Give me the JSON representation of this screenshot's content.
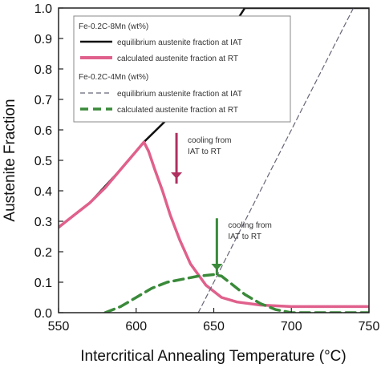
{
  "chart_data": {
    "type": "line",
    "xlabel": "Intercritical Annealing Temperature (°C)",
    "ylabel": "Austenite Fraction",
    "xlim": [
      550,
      750
    ],
    "ylim": [
      0,
      1.0
    ],
    "xticks": [
      "550",
      "600",
      "650",
      "700",
      "750"
    ],
    "yticks": [
      "0.0",
      "0.1",
      "0.2",
      "0.3",
      "0.4",
      "0.5",
      "0.6",
      "0.7",
      "0.8",
      "0.9",
      "1.0"
    ],
    "grid": false,
    "legend": {
      "placement": "top-left",
      "group1_title": "Fe-0.2C-8Mn (wt%)",
      "group2_title": "Fe-0.2C-4Mn (wt%)"
    },
    "series": [
      {
        "name": "equilibrium austenite fraction at IAT",
        "group": "Fe-0.2C-8Mn (wt%)",
        "color": "#111111",
        "style": "solid",
        "x": [
          550,
          570,
          590,
          605,
          615,
          625,
          635,
          645,
          655,
          665,
          670,
          700,
          750
        ],
        "y": [
          0.28,
          0.36,
          0.47,
          0.56,
          0.61,
          0.66,
          0.72,
          0.79,
          0.87,
          0.96,
          1.0,
          1.0,
          1.0
        ]
      },
      {
        "name": "calculated austenite fraction at RT",
        "group": "Fe-0.2C-8Mn (wt%)",
        "color": "#e0608c",
        "style": "solid",
        "x": [
          550,
          560,
          570,
          580,
          590,
          600,
          605,
          608,
          612,
          617,
          622,
          628,
          635,
          645,
          655,
          665,
          680,
          700,
          720,
          750
        ],
        "y": [
          0.28,
          0.32,
          0.36,
          0.41,
          0.47,
          0.53,
          0.56,
          0.53,
          0.47,
          0.4,
          0.32,
          0.24,
          0.16,
          0.09,
          0.05,
          0.035,
          0.025,
          0.02,
          0.02,
          0.02
        ]
      },
      {
        "name": "equilibrium austenite fraction at IAT",
        "group": "Fe-0.2C-4Mn (wt%)",
        "color": "#666677",
        "style": "dashed-thin",
        "x": [
          640,
          660,
          680,
          700,
          720,
          740,
          750
        ],
        "y": [
          0.0,
          0.2,
          0.4,
          0.6,
          0.8,
          1.0,
          1.2
        ]
      },
      {
        "name": "calculated austenite fraction at RT",
        "group": "Fe-0.2C-4Mn (wt%)",
        "color": "#3a8a3a",
        "style": "dashed-thick",
        "x": [
          580,
          590,
          600,
          610,
          620,
          630,
          640,
          650,
          655,
          660,
          670,
          680,
          690,
          700,
          720,
          750
        ],
        "y": [
          0.0,
          0.02,
          0.05,
          0.08,
          0.1,
          0.11,
          0.12,
          0.125,
          0.12,
          0.1,
          0.06,
          0.03,
          0.01,
          0.0,
          0.0,
          0.0
        ]
      }
    ],
    "annotations": [
      {
        "line1": "cooling from",
        "line2": "IAT to RT",
        "color": "#b03060",
        "x": 626,
        "y_from": 0.59,
        "y_to": 0.45
      },
      {
        "line1": "cooling from",
        "line2": "IAT to RT",
        "color": "#3a8a3a",
        "x": 652,
        "y_from": 0.31,
        "y_to": 0.15
      }
    ]
  }
}
